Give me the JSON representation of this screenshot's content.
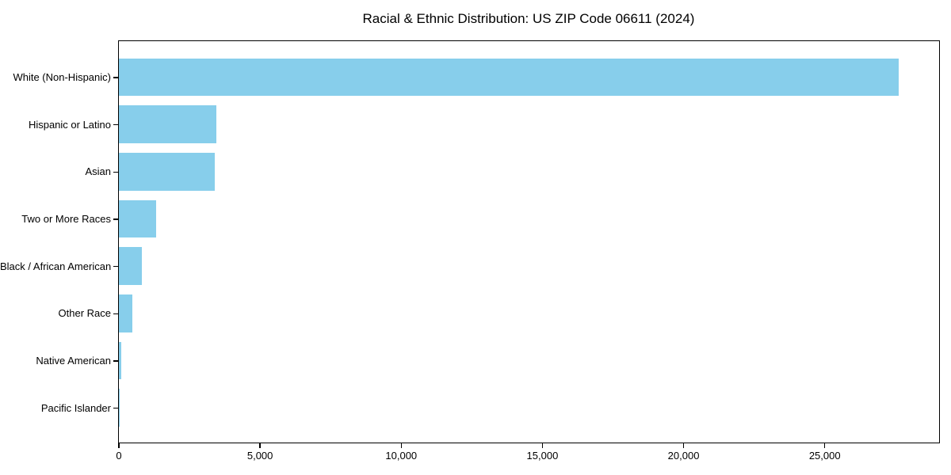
{
  "chart_data": {
    "type": "bar",
    "orientation": "horizontal",
    "title": "Racial & Ethnic Distribution: US ZIP Code 06611 (2024)",
    "categories": [
      "White (Non-Hispanic)",
      "Hispanic or Latino",
      "Asian",
      "Two or More Races",
      "Black / African American",
      "Other Race",
      "Native American",
      "Pacific Islander"
    ],
    "values": [
      27640,
      3460,
      3420,
      1340,
      830,
      500,
      100,
      10
    ],
    "xlabel": "",
    "ylabel": "",
    "xlim": [
      0,
      29022
    ],
    "xticks": [
      0,
      5000,
      10000,
      15000,
      20000,
      25000
    ],
    "xtick_labels": [
      "0",
      "5,000",
      "10,000",
      "15,000",
      "20,000",
      "25,000"
    ],
    "grid": false,
    "legend": null,
    "colors": {
      "bar": "#87CEEB",
      "axis": "#000000",
      "background": "#ffffff"
    }
  }
}
